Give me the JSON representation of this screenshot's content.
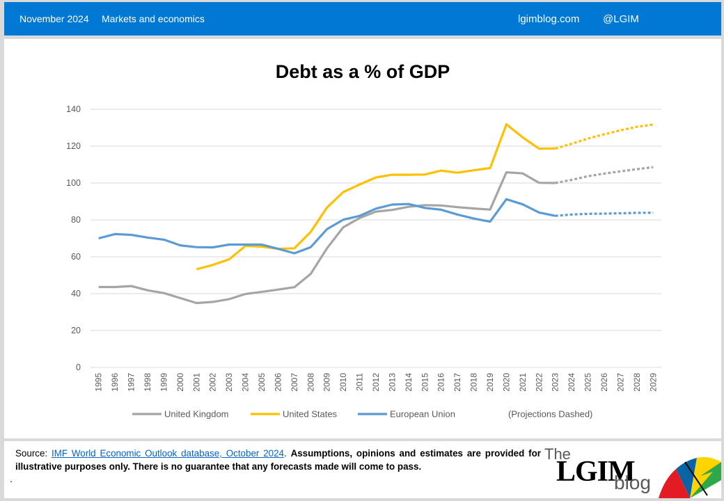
{
  "header": {
    "date": "November 2024",
    "section": "Markets and economics",
    "site": "lgimblog.com",
    "handle": "@LGIM"
  },
  "footer": {
    "source_prefix": "Source: ",
    "source_link": "IMF World Economic Outlook database, October 2024",
    "disclaimer": "Assumptions, opinions and estimates are provided for illustrative purposes only. There is no guarantee that any forecasts made will come to pass.",
    "dot": ".",
    "logo_the": "The",
    "logo_main": "LGIM",
    "logo_blog": "blog"
  },
  "chart_data": {
    "type": "line",
    "title": "Debt as a % of GDP",
    "x": [
      1995,
      1996,
      1997,
      1998,
      1999,
      2000,
      2001,
      2002,
      2003,
      2004,
      2005,
      2006,
      2007,
      2008,
      2009,
      2010,
      2011,
      2012,
      2013,
      2014,
      2015,
      2016,
      2017,
      2018,
      2019,
      2020,
      2021,
      2022,
      2023,
      2024,
      2025,
      2026,
      2027,
      2028,
      2029
    ],
    "ylim": [
      0,
      140
    ],
    "yticks": [
      0,
      20,
      40,
      60,
      80,
      100,
      120,
      140
    ],
    "projection_start": 2023,
    "projection_note": "(Projections Dashed)",
    "grid": true,
    "legend_position": "bottom",
    "series": [
      {
        "name": "United Kingdom",
        "color": "#a5a5a5",
        "values": [
          43.6,
          43.6,
          44.1,
          41.8,
          40.3,
          37.6,
          34.9,
          35.5,
          37,
          39.8,
          41,
          42.2,
          43.5,
          50.7,
          64.6,
          76,
          81,
          84.5,
          85.4,
          87.1,
          88,
          87.8,
          86.9,
          86.2,
          85.6,
          105.8,
          105.2,
          100.1,
          100,
          101.7,
          103.7,
          105.1,
          106.3,
          107.5,
          108.6
        ]
      },
      {
        "name": "United States",
        "color": "#ffc000",
        "values": [
          null,
          null,
          null,
          null,
          null,
          null,
          53.2,
          55.6,
          58.6,
          65.9,
          65.5,
          64.3,
          64.6,
          73.5,
          86.7,
          95.1,
          99.2,
          103,
          104.5,
          104.5,
          104.6,
          106.7,
          105.6,
          106.9,
          108.1,
          131.8,
          124.7,
          118.6,
          118.7,
          121.3,
          124.1,
          126.4,
          128.6,
          130.5,
          131.7
        ]
      },
      {
        "name": "European Union",
        "color": "#5b9bd5",
        "values": [
          70,
          72.3,
          71.9,
          70.4,
          69.3,
          66.2,
          65.2,
          65.1,
          66.6,
          66.6,
          66.6,
          64.3,
          61.9,
          65.2,
          75,
          80.1,
          82.2,
          86.1,
          88.3,
          88.6,
          86.5,
          85.5,
          82.9,
          80.7,
          79,
          91.2,
          88.4,
          84,
          82.2,
          82.9,
          83.3,
          83.4,
          83.6,
          83.8,
          83.9
        ]
      }
    ]
  }
}
